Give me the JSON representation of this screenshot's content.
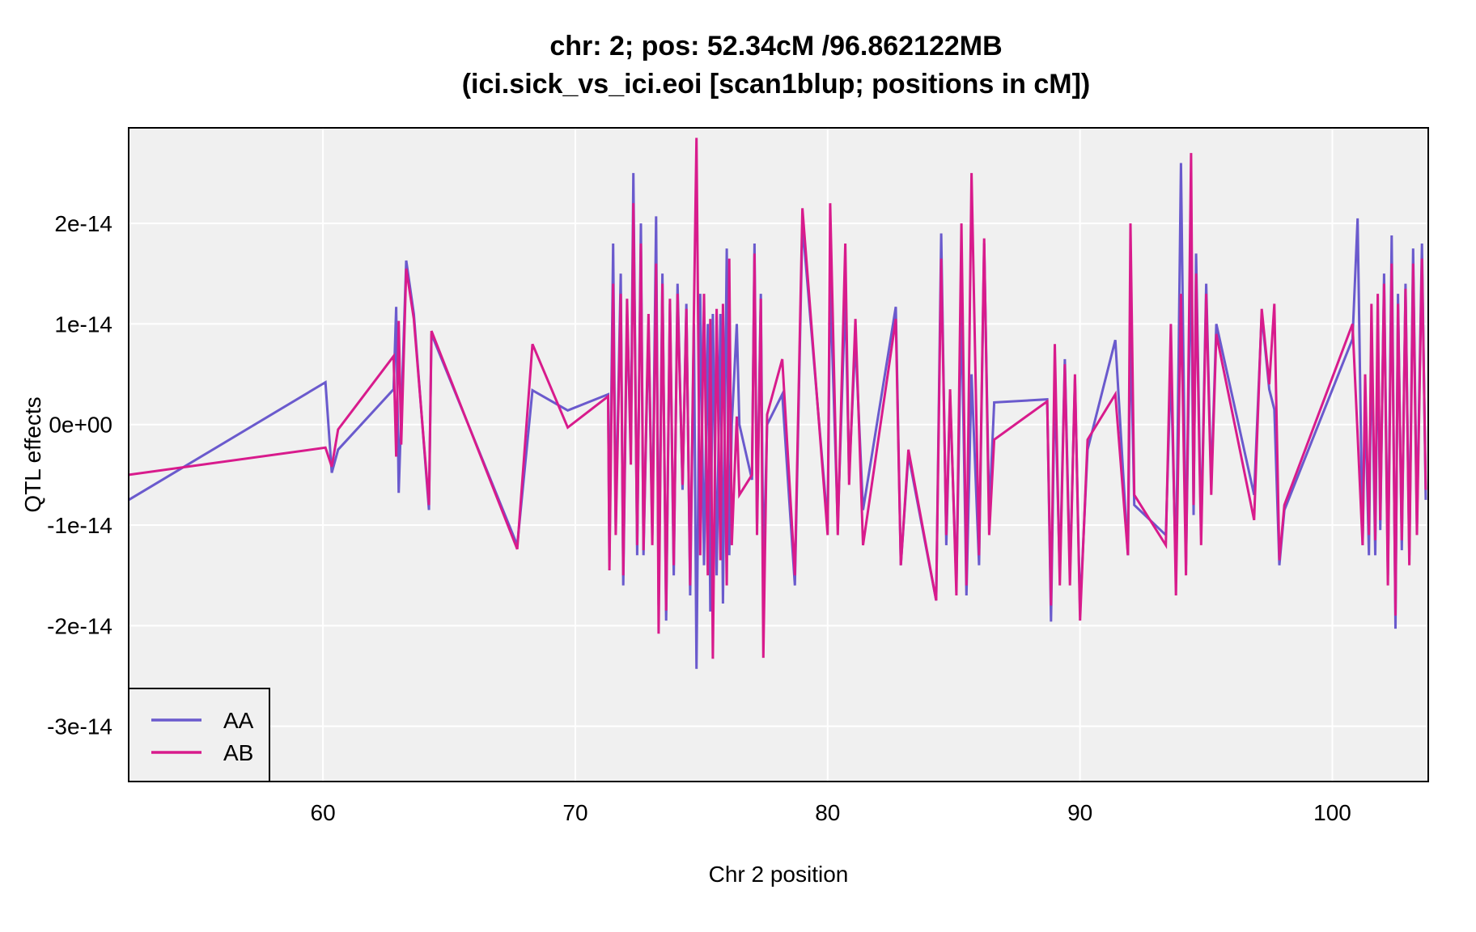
{
  "chart_data": {
    "type": "line",
    "title": "chr: 2; pos: 52.34cM /96.862122MB",
    "subtitle": "(ici.sick_vs_ici.eoi [scan1blup; positions in cM])",
    "xlabel": "Chr 2 position",
    "ylabel": "QTL effects",
    "xlim": [
      52.3,
      103.8
    ],
    "ylim": [
      -3.55e-14,
      2.95e-14
    ],
    "x_ticks": [
      60,
      70,
      80,
      90,
      100
    ],
    "x_tick_labels": [
      "60",
      "70",
      "80",
      "90",
      "100"
    ],
    "y_ticks": [
      -3e-14,
      -2e-14,
      -1e-14,
      0,
      1e-14,
      2e-14
    ],
    "y_tick_labels": [
      "-3e-14",
      "-2e-14",
      "-1e-14",
      "0e+00",
      "1e-14",
      "2e-14"
    ],
    "grid": true,
    "background": "#f0f0f0",
    "legend_position": "bottom-left",
    "series": [
      {
        "name": "AA",
        "color": "#6a5acd",
        "x": [
          52.3,
          60.1,
          60.35,
          60.6,
          62.8,
          62.9,
          63.0,
          63.1,
          63.3,
          63.6,
          64.2,
          64.3,
          67.7,
          68.3,
          69.7,
          71.3,
          71.35,
          71.5,
          71.6,
          71.8,
          71.9,
          72.05,
          72.2,
          72.3,
          72.45,
          72.6,
          72.7,
          72.9,
          73.05,
          73.2,
          73.25,
          73.3,
          73.45,
          73.6,
          73.75,
          73.9,
          74.05,
          74.25,
          74.4,
          74.55,
          74.7,
          74.8,
          74.95,
          75.1,
          75.25,
          75.35,
          75.45,
          75.6,
          75.75,
          75.85,
          76.0,
          76.1,
          76.2,
          76.4,
          76.5,
          77.0,
          77.1,
          77.2,
          77.35,
          77.45,
          77.6,
          78.2,
          78.7,
          79.0,
          80.0,
          80.1,
          80.4,
          80.7,
          80.85,
          81.1,
          81.4,
          82.7,
          82.9,
          83.2,
          84.3,
          84.5,
          84.7,
          84.85,
          85.1,
          85.3,
          85.5,
          85.7,
          86.0,
          86.2,
          86.4,
          86.6,
          88.7,
          88.85,
          89.0,
          89.2,
          89.4,
          89.6,
          89.8,
          90.0,
          90.3,
          91.4,
          91.9,
          92.0,
          92.15,
          93.4,
          93.6,
          93.8,
          94.0,
          94.2,
          94.4,
          94.5,
          94.6,
          94.8,
          95.0,
          95.2,
          95.4,
          96.9,
          97.2,
          97.5,
          97.7,
          97.9,
          98.1,
          100.8,
          101.0,
          101.2,
          101.3,
          101.45,
          101.55,
          101.7,
          101.8,
          101.9,
          102.05,
          102.2,
          102.35,
          102.5,
          102.6,
          102.75,
          102.9,
          103.05,
          103.2,
          103.35,
          103.55,
          103.7
        ],
        "y": [
          -7.5e-15,
          4.2e-15,
          -4.8e-15,
          -2.5e-15,
          3.5e-15,
          1.17e-14,
          -6.8e-15,
          1e-15,
          1.63e-14,
          1.1e-14,
          -8.5e-15,
          9e-15,
          -1.2e-14,
          3.4e-15,
          1.4e-15,
          3e-15,
          -1.35e-14,
          1.8e-14,
          -1e-14,
          1.5e-14,
          -1.6e-14,
          1.1e-14,
          -2e-15,
          2.5e-14,
          -1.3e-14,
          2e-14,
          -1.3e-14,
          1e-14,
          -1.1e-14,
          2.07e-14,
          3e-15,
          -1.8e-14,
          1.5e-14,
          -1.95e-14,
          1.2e-14,
          -1.5e-14,
          1.4e-14,
          -6.5e-15,
          1.2e-14,
          -1.7e-14,
          1e-14,
          -2.43e-14,
          1.3e-14,
          -1.4e-14,
          1e-14,
          -1.86e-14,
          1.1e-14,
          -1.5e-14,
          1.1e-14,
          -1.78e-14,
          1.75e-14,
          -1.3e-14,
          0,
          1e-14,
          0,
          -5.5e-15,
          1.8e-14,
          -1e-14,
          1.3e-14,
          -1.5e-14,
          0,
          3e-15,
          -1.6e-14,
          2e-14,
          -1e-14,
          1.4e-14,
          -1e-14,
          1.3e-14,
          -5e-15,
          8.4e-15,
          -8.5e-15,
          1.17e-14,
          -1.4e-14,
          -3e-15,
          -1.75e-14,
          1.9e-14,
          -1.2e-14,
          2.9e-15,
          -1.6e-14,
          1.2e-14,
          -1.7e-14,
          5e-15,
          -1.4e-14,
          1.8e-14,
          -9e-15,
          2.2e-15,
          2.5e-15,
          -1.96e-14,
          4.5e-15,
          -1.5e-14,
          6.5e-15,
          -1.5e-14,
          4.5e-15,
          -1.85e-14,
          -2.5e-15,
          8.4e-15,
          -1.3e-14,
          1e-14,
          -8e-15,
          -1.1e-14,
          6e-15,
          -1.5e-14,
          2.6e-14,
          -1.4e-14,
          1.8e-14,
          -9e-15,
          1.7e-14,
          -1.1e-14,
          1.4e-14,
          -6e-15,
          1e-14,
          -7e-15,
          1.1e-14,
          3.5e-15,
          1.5e-15,
          -1.4e-14,
          -8.5e-15,
          8.5e-15,
          2.05e-14,
          -1.2e-14,
          2.5e-15,
          -1.3e-14,
          9e-15,
          -1.3e-14,
          1e-14,
          -1.05e-14,
          1.5e-14,
          -1.5e-14,
          1.88e-14,
          -2.03e-14,
          1.3e-14,
          -1.25e-14,
          1.4e-14,
          -1.3e-14,
          1.75e-14,
          -1e-14,
          1.8e-14,
          -7.5e-15
        ]
      },
      {
        "name": "AB",
        "color": "#d81b8c",
        "x": [
          52.3,
          60.1,
          60.35,
          60.6,
          62.8,
          62.9,
          63.0,
          63.1,
          63.3,
          63.6,
          64.2,
          64.3,
          67.7,
          68.3,
          69.7,
          71.3,
          71.35,
          71.5,
          71.6,
          71.8,
          71.9,
          72.05,
          72.2,
          72.3,
          72.45,
          72.6,
          72.7,
          72.9,
          73.05,
          73.2,
          73.25,
          73.3,
          73.45,
          73.6,
          73.75,
          73.9,
          74.05,
          74.25,
          74.4,
          74.55,
          74.7,
          74.8,
          74.95,
          75.1,
          75.25,
          75.35,
          75.45,
          75.6,
          75.75,
          75.85,
          76.0,
          76.1,
          76.2,
          76.4,
          76.5,
          77.0,
          77.1,
          77.2,
          77.35,
          77.45,
          77.6,
          78.2,
          78.7,
          79.0,
          80.0,
          80.1,
          80.4,
          80.7,
          80.85,
          81.1,
          81.4,
          82.7,
          82.9,
          83.2,
          84.3,
          84.5,
          84.7,
          84.85,
          85.1,
          85.3,
          85.5,
          85.7,
          86.0,
          86.2,
          86.4,
          86.6,
          88.7,
          88.85,
          89.0,
          89.2,
          89.4,
          89.6,
          89.8,
          90.0,
          90.3,
          91.4,
          91.9,
          92.0,
          92.15,
          93.4,
          93.6,
          93.8,
          94.0,
          94.2,
          94.4,
          94.5,
          94.6,
          94.8,
          95.0,
          95.2,
          95.4,
          96.9,
          97.2,
          97.5,
          97.7,
          97.9,
          98.1,
          100.8,
          101.0,
          101.2,
          101.3,
          101.45,
          101.55,
          101.7,
          101.8,
          101.9,
          102.05,
          102.2,
          102.35,
          102.5,
          102.6,
          102.75,
          102.9,
          103.05,
          103.2,
          103.35,
          103.55,
          103.7
        ],
        "y": [
          -5e-15,
          -2.3e-15,
          -4.2e-15,
          -5e-16,
          6.8e-15,
          -3.2e-15,
          1.03e-14,
          -2e-15,
          1.55e-14,
          1.05e-14,
          -8e-15,
          9.3e-15,
          -1.24e-14,
          8e-15,
          -3e-16,
          2.8e-15,
          -1.45e-14,
          1.4e-14,
          -1.1e-14,
          1.3e-14,
          -1.5e-14,
          1.25e-14,
          -4e-15,
          2.2e-14,
          -1.2e-14,
          1.8e-14,
          -1.25e-14,
          1.1e-14,
          -1.2e-14,
          1.6e-14,
          2e-15,
          -2.08e-14,
          1.4e-14,
          -1.85e-14,
          1.25e-14,
          -1.4e-14,
          1.3e-14,
          -6e-15,
          1.15e-14,
          -1.6e-14,
          1.1e-14,
          2.85e-14,
          -1.3e-14,
          1.3e-14,
          -1.5e-14,
          1.05e-14,
          -2.33e-14,
          1.15e-14,
          -1.35e-14,
          1.2e-14,
          -1.6e-14,
          1.65e-14,
          -1.2e-14,
          8e-16,
          -7e-15,
          -5e-15,
          1.7e-14,
          -1.1e-14,
          1.25e-14,
          -2.32e-14,
          1e-15,
          6.5e-15,
          -1.5e-14,
          2.15e-14,
          -1.1e-14,
          2.2e-14,
          -1.1e-14,
          1.8e-14,
          -6e-15,
          1.05e-14,
          -1.2e-14,
          1.05e-14,
          -1.4e-14,
          -2.5e-15,
          -1.75e-14,
          1.65e-14,
          -1.1e-14,
          3.5e-15,
          -1.7e-14,
          2e-14,
          -1.6e-14,
          2.5e-14,
          -1.3e-14,
          1.85e-14,
          -1.1e-14,
          -1.5e-15,
          2.3e-15,
          -1.8e-14,
          8e-15,
          -1.6e-14,
          6e-15,
          -1.6e-14,
          5e-15,
          -1.95e-14,
          -1.5e-15,
          3e-15,
          -1.3e-14,
          2e-14,
          -7e-15,
          -1.2e-14,
          1e-14,
          -1.7e-14,
          1.3e-14,
          -1.5e-14,
          2.7e-14,
          -8e-15,
          1.5e-14,
          -1.2e-14,
          1.3e-14,
          -7e-15,
          9e-15,
          -9.5e-15,
          1.15e-14,
          4e-15,
          1.2e-14,
          -1.35e-14,
          -8e-15,
          1e-14,
          -1e-15,
          -1.2e-14,
          5e-15,
          -1.1e-14,
          1.2e-14,
          -1.15e-14,
          1.3e-14,
          -9.5e-15,
          1.4e-14,
          -1.6e-14,
          1.6e-14,
          -1.9e-14,
          1.2e-14,
          -1.15e-14,
          1.35e-14,
          -1.4e-14,
          1.6e-14,
          -1.1e-14,
          1.65e-14,
          -6.5e-15
        ]
      }
    ]
  }
}
